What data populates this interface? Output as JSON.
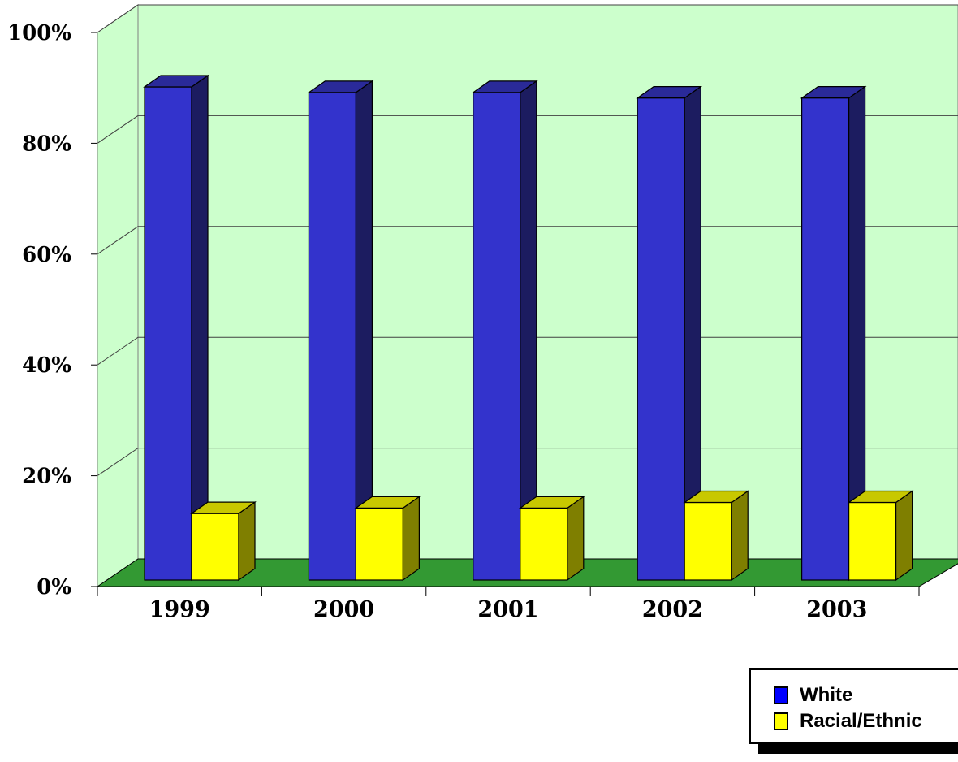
{
  "chart_data": {
    "type": "bar",
    "categories": [
      "1999",
      "2000",
      "2001",
      "2002",
      "2003"
    ],
    "series": [
      {
        "name": "White",
        "values": [
          89,
          88,
          88,
          87,
          87
        ],
        "color": "#3333cc",
        "side_color": "#1c1c60",
        "top_color": "#2a2a99"
      },
      {
        "name": "Racial/Ethnic",
        "values": [
          12,
          13,
          13,
          14,
          14
        ],
        "color": "#ffff00",
        "side_color": "#7f7f00",
        "top_color": "#c8c800"
      }
    ],
    "ylim": [
      0,
      100
    ],
    "yticks": [
      "0%",
      "20%",
      "40%",
      "60%",
      "80%",
      "100%"
    ],
    "wall_color": "#ccffcc",
    "floor_color": "#339933",
    "grid": true,
    "legend_position": "bottom-right",
    "three_d": true
  },
  "legend": {
    "items": [
      {
        "label": "White",
        "color": "#0000ff"
      },
      {
        "label": "Racial/Ethnic",
        "color": "#ffff00"
      }
    ]
  }
}
